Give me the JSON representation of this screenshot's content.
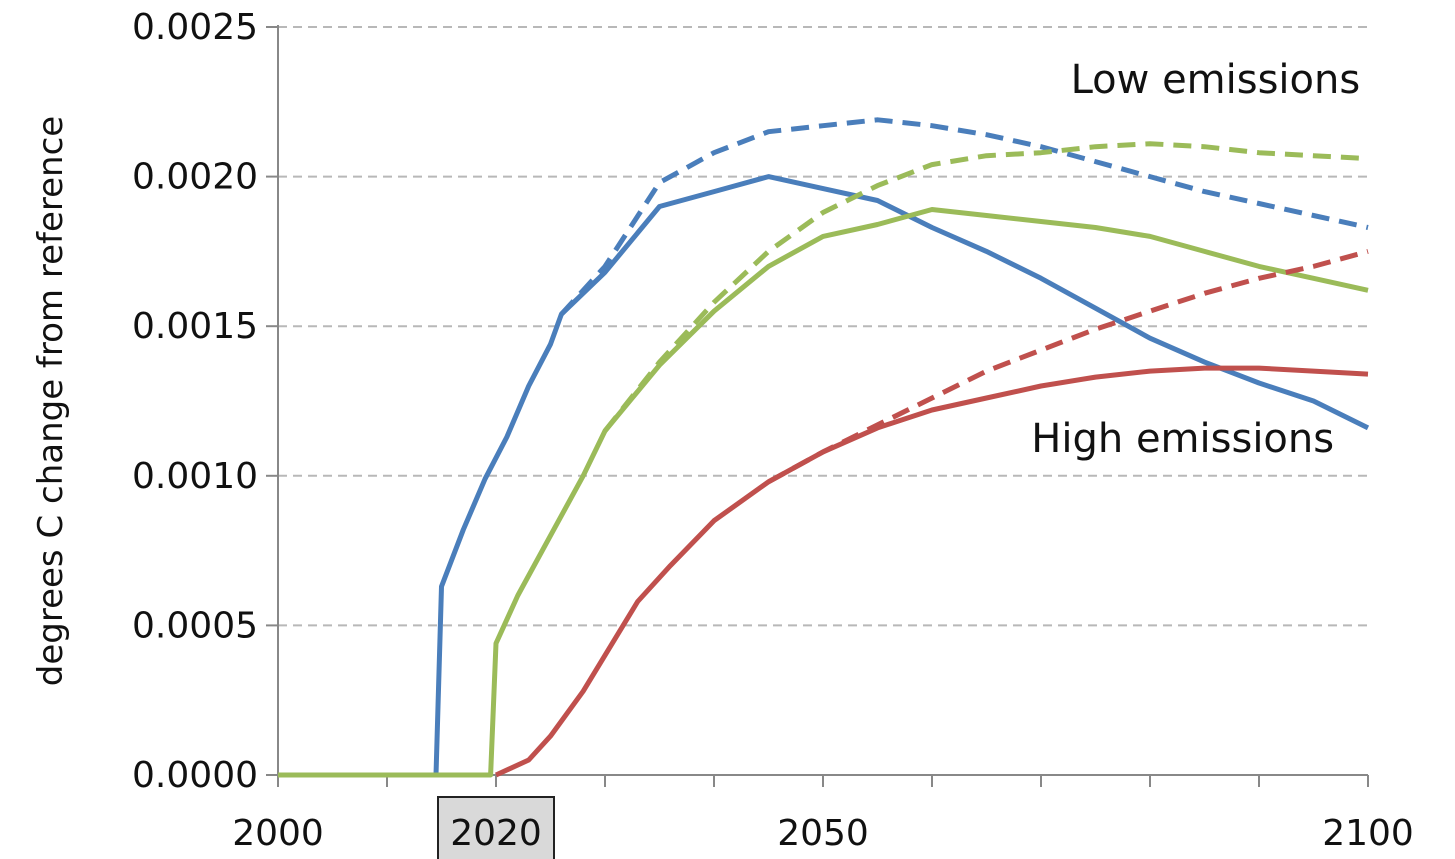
{
  "chart_data": {
    "type": "line",
    "ylabel": "degrees C change from reference",
    "xlim": [
      2000,
      2100
    ],
    "ylim": [
      0,
      0.0025
    ],
    "x_ticks": [
      "2000",
      "2020",
      "2050",
      "2100"
    ],
    "y_ticks": [
      "0.0000",
      "0.0005",
      "0.0010",
      "0.0015",
      "0.0020",
      "0.0025"
    ],
    "highlighted_tick": "2020",
    "grid": true,
    "annotations": [
      {
        "text": "Low emissions",
        "x": 2086,
        "y": 0.00228
      },
      {
        "text": "High emissions",
        "x": 2083,
        "y": 0.00108
      }
    ],
    "series": [
      {
        "color": "#4a7ebb",
        "dash": false,
        "points": [
          [
            2000,
            0
          ],
          [
            2014.5,
            0
          ],
          [
            2015,
            0.00063
          ],
          [
            2017,
            0.00082
          ],
          [
            2019,
            0.00099
          ],
          [
            2021,
            0.00113
          ],
          [
            2023,
            0.0013
          ],
          [
            2025,
            0.00144
          ],
          [
            2026,
            0.00154
          ],
          [
            2030,
            0.00168
          ],
          [
            2035,
            0.0019
          ],
          [
            2040,
            0.00195
          ],
          [
            2045,
            0.002
          ],
          [
            2050,
            0.00196
          ],
          [
            2055,
            0.00192
          ],
          [
            2060,
            0.00183
          ],
          [
            2065,
            0.00175
          ],
          [
            2070,
            0.00166
          ],
          [
            2075,
            0.00156
          ],
          [
            2080,
            0.00146
          ],
          [
            2085,
            0.00138
          ],
          [
            2090,
            0.00131
          ],
          [
            2095,
            0.00125
          ],
          [
            2100,
            0.00116
          ]
        ]
      },
      {
        "color": "#4a7ebb",
        "dash": true,
        "points": [
          [
            2026,
            0.00154
          ],
          [
            2030,
            0.0017
          ],
          [
            2035,
            0.00198
          ],
          [
            2040,
            0.00208
          ],
          [
            2045,
            0.00215
          ],
          [
            2050,
            0.00217
          ],
          [
            2055,
            0.00219
          ],
          [
            2060,
            0.00217
          ],
          [
            2065,
            0.00214
          ],
          [
            2070,
            0.0021
          ],
          [
            2075,
            0.00205
          ],
          [
            2080,
            0.002
          ],
          [
            2085,
            0.00195
          ],
          [
            2090,
            0.00191
          ],
          [
            2095,
            0.00187
          ],
          [
            2100,
            0.00183
          ]
        ]
      },
      {
        "color": "#9bbb59",
        "dash": false,
        "points": [
          [
            2000,
            0
          ],
          [
            2019.5,
            0
          ],
          [
            2020,
            0.00044
          ],
          [
            2022,
            0.0006
          ],
          [
            2025,
            0.0008
          ],
          [
            2028,
            0.001
          ],
          [
            2030,
            0.00115
          ],
          [
            2035,
            0.00137
          ],
          [
            2040,
            0.00155
          ],
          [
            2045,
            0.0017
          ],
          [
            2050,
            0.0018
          ],
          [
            2055,
            0.00184
          ],
          [
            2060,
            0.00189
          ],
          [
            2065,
            0.00187
          ],
          [
            2070,
            0.00185
          ],
          [
            2075,
            0.00183
          ],
          [
            2080,
            0.0018
          ],
          [
            2085,
            0.00175
          ],
          [
            2090,
            0.0017
          ],
          [
            2095,
            0.00166
          ],
          [
            2100,
            0.00162
          ]
        ]
      },
      {
        "color": "#9bbb59",
        "dash": true,
        "points": [
          [
            2030,
            0.00115
          ],
          [
            2035,
            0.00138
          ],
          [
            2040,
            0.00158
          ],
          [
            2045,
            0.00175
          ],
          [
            2050,
            0.00188
          ],
          [
            2055,
            0.00197
          ],
          [
            2060,
            0.00204
          ],
          [
            2065,
            0.00207
          ],
          [
            2070,
            0.00208
          ],
          [
            2075,
            0.0021
          ],
          [
            2080,
            0.00211
          ],
          [
            2085,
            0.0021
          ],
          [
            2090,
            0.00208
          ],
          [
            2095,
            0.00207
          ],
          [
            2100,
            0.00206
          ]
        ]
      },
      {
        "color": "#c0504d",
        "dash": false,
        "points": [
          [
            2020,
            0
          ],
          [
            2023,
            5e-05
          ],
          [
            2025,
            0.00013
          ],
          [
            2028,
            0.00028
          ],
          [
            2030,
            0.0004
          ],
          [
            2033,
            0.00058
          ],
          [
            2036,
            0.0007
          ],
          [
            2040,
            0.00085
          ],
          [
            2045,
            0.00098
          ],
          [
            2050,
            0.00108
          ],
          [
            2055,
            0.00116
          ],
          [
            2060,
            0.00122
          ],
          [
            2065,
            0.00126
          ],
          [
            2070,
            0.0013
          ],
          [
            2075,
            0.00133
          ],
          [
            2080,
            0.00135
          ],
          [
            2085,
            0.00136
          ],
          [
            2090,
            0.00136
          ],
          [
            2095,
            0.00135
          ],
          [
            2100,
            0.00134
          ]
        ]
      },
      {
        "color": "#c0504d",
        "dash": true,
        "points": [
          [
            2045,
            0.00098
          ],
          [
            2050,
            0.00108
          ],
          [
            2055,
            0.00117
          ],
          [
            2060,
            0.00126
          ],
          [
            2065,
            0.00135
          ],
          [
            2070,
            0.00142
          ],
          [
            2075,
            0.00149
          ],
          [
            2080,
            0.00155
          ],
          [
            2085,
            0.00161
          ],
          [
            2090,
            0.00166
          ],
          [
            2095,
            0.0017
          ],
          [
            2100,
            0.00175
          ]
        ]
      }
    ]
  }
}
